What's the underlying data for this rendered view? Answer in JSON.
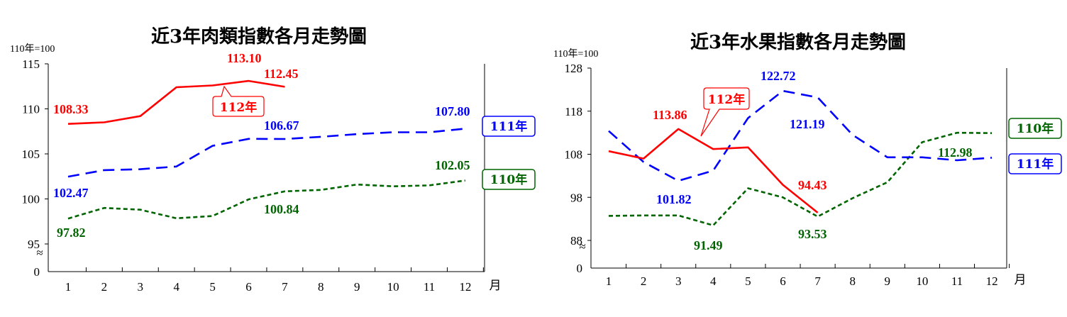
{
  "chart_data": [
    {
      "type": "line",
      "title": "近3年肉類指數各月走勢圖",
      "unit_label": "110年=100",
      "xunit": "月",
      "categories": [
        "1",
        "2",
        "3",
        "4",
        "5",
        "6",
        "7",
        "8",
        "9",
        "10",
        "11",
        "12"
      ],
      "ylim": [
        95,
        115
      ],
      "yticks": [
        "115",
        "110",
        "105",
        "100",
        "95"
      ],
      "ybase_label": "0",
      "axis_break": "≈",
      "series": [
        {
          "name": "112年",
          "color": "#ff0000",
          "dash": "solid",
          "values": [
            108.33,
            108.5,
            109.2,
            112.4,
            112.6,
            113.1,
            112.45,
            null,
            null,
            null,
            null,
            null
          ]
        },
        {
          "name": "111年",
          "color": "#0000ff",
          "dash": "long",
          "values": [
            102.47,
            103.2,
            103.3,
            103.6,
            105.9,
            106.67,
            106.65,
            106.9,
            107.2,
            107.4,
            107.4,
            107.8
          ]
        },
        {
          "name": "110年",
          "color": "#006400",
          "dash": "short",
          "values": [
            97.82,
            99.0,
            98.8,
            97.85,
            98.1,
            99.95,
            100.84,
            101.0,
            101.6,
            101.4,
            101.5,
            102.05
          ]
        }
      ],
      "data_labels": [
        "108.33",
        "113.10",
        "112.45",
        "106.67",
        "107.80",
        "102.47",
        "97.82",
        "100.84",
        "102.05"
      ],
      "legend": [
        "111年",
        "110年"
      ],
      "callout": "112年"
    },
    {
      "type": "line",
      "title": "近3年水果指數各月走勢圖",
      "unit_label": "110年=100",
      "xunit": "月",
      "categories": [
        "1",
        "2",
        "3",
        "4",
        "5",
        "6",
        "7",
        "8",
        "9",
        "10",
        "11",
        "12"
      ],
      "ylim": [
        88,
        128
      ],
      "yticks": [
        "128",
        "118",
        "108",
        "98",
        "88"
      ],
      "ybase_label": "0",
      "axis_break": "≈",
      "series": [
        {
          "name": "112年",
          "color": "#ff0000",
          "dash": "solid",
          "values": [
            108.7,
            107.0,
            113.86,
            109.2,
            109.6,
            100.9,
            94.43,
            null,
            null,
            null,
            null,
            null
          ]
        },
        {
          "name": "111年",
          "color": "#0000ff",
          "dash": "long",
          "values": [
            113.4,
            106.2,
            101.82,
            104.2,
            116.4,
            122.72,
            121.19,
            112.5,
            107.3,
            107.3,
            106.6,
            107.2
          ]
        },
        {
          "name": "110年",
          "color": "#006400",
          "dash": "short",
          "values": [
            93.7,
            93.8,
            93.8,
            91.49,
            100.1,
            98.0,
            93.53,
            97.8,
            101.5,
            110.8,
            112.98,
            112.9
          ]
        }
      ],
      "data_labels": [
        "113.86",
        "94.43",
        "122.72",
        "121.19",
        "101.82",
        "112.98",
        "91.49",
        "93.53"
      ],
      "legend": [
        "110年",
        "111年"
      ],
      "callout": "112年"
    }
  ]
}
